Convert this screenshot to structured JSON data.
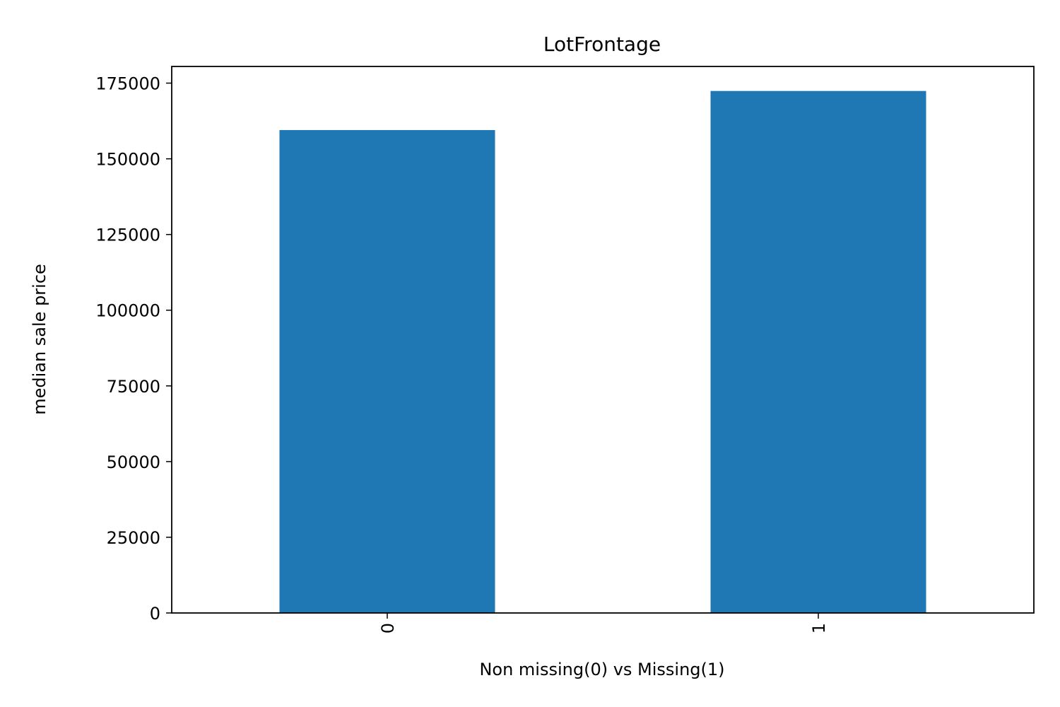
{
  "chart_data": {
    "type": "bar",
    "title": "LotFrontage",
    "xlabel": "Non missing(0) vs Missing(1)",
    "ylabel": "median sale price",
    "categories": [
      "0",
      "1"
    ],
    "values": [
      159500,
      172400
    ],
    "ylim": [
      0,
      180500
    ],
    "yticks": [
      0,
      25000,
      50000,
      75000,
      100000,
      125000,
      150000,
      175000
    ],
    "ytick_labels": [
      "0",
      "25000",
      "50000",
      "75000",
      "100000",
      "125000",
      "150000",
      "175000"
    ],
    "xtick_rotation": "vertical",
    "grid": false,
    "legend": "none",
    "bar_color": "#1f77b4"
  }
}
